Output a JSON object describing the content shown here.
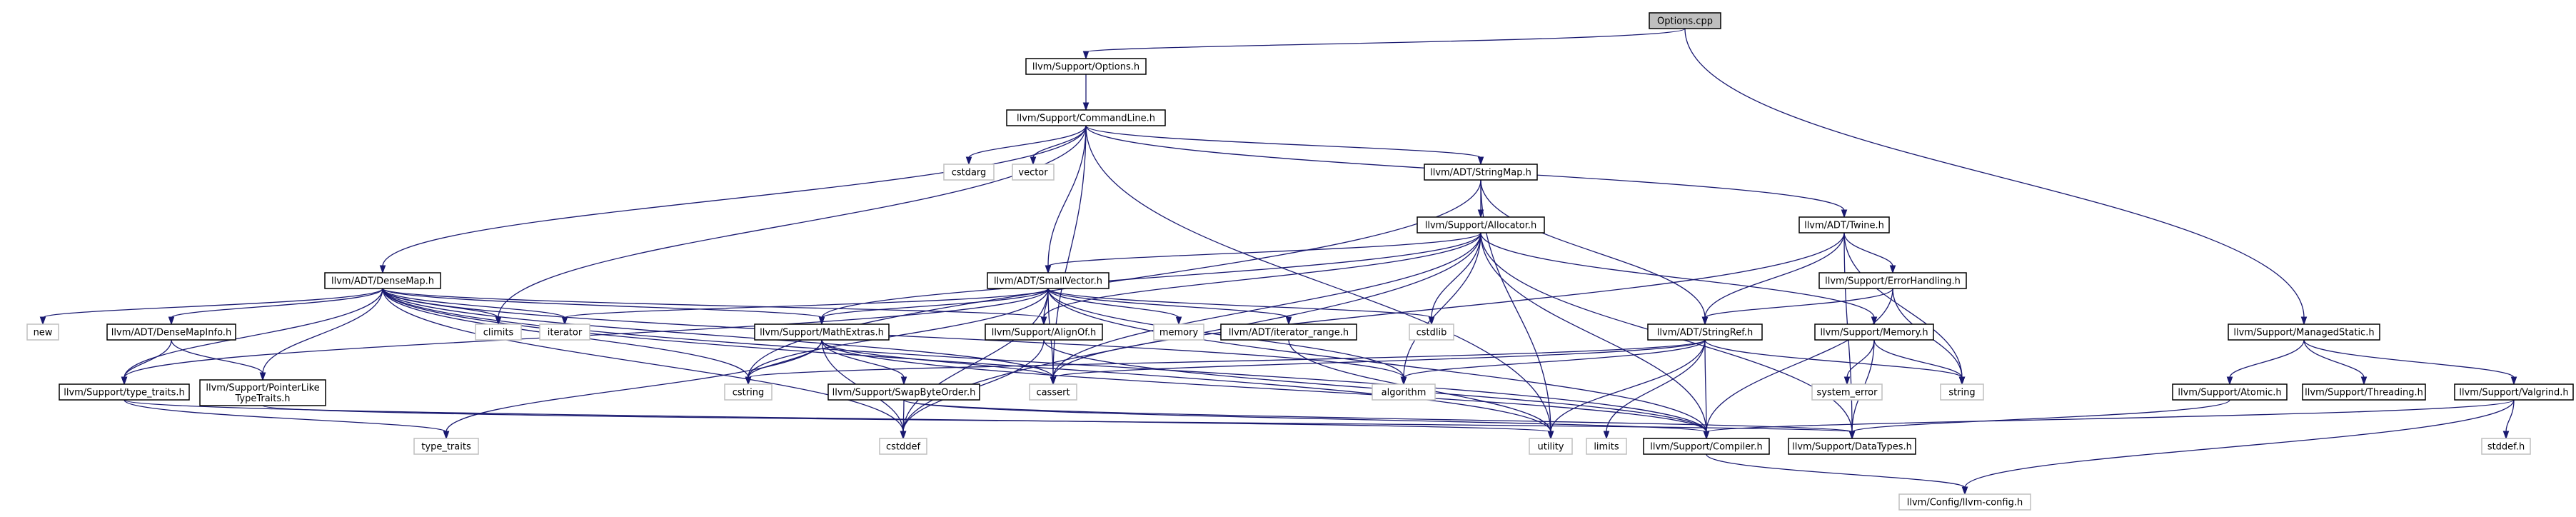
{
  "graph": {
    "colors": {
      "edge": "#191970",
      "root_fill": "#bfbfbf",
      "node_border": "#000000",
      "system_border": "#bfbfbf"
    },
    "nodes": [
      {
        "id": "options_cpp",
        "label": "Options.cpp",
        "kind": "root"
      },
      {
        "id": "options_h",
        "label": "llvm/Support/Options.h",
        "kind": "boxed"
      },
      {
        "id": "commandline_h",
        "label": "llvm/Support/CommandLine.h",
        "kind": "boxed"
      },
      {
        "id": "managedstatic_h",
        "label": "llvm/Support/ManagedStatic.h",
        "kind": "boxed"
      },
      {
        "id": "densemap_h",
        "label": "llvm/ADT/DenseMap.h",
        "kind": "boxed"
      },
      {
        "id": "stringmap_h",
        "label": "llvm/ADT/StringMap.h",
        "kind": "boxed"
      },
      {
        "id": "twine_h",
        "label": "llvm/ADT/Twine.h",
        "kind": "boxed"
      },
      {
        "id": "allocator_h",
        "label": "llvm/Support/Allocator.h",
        "kind": "boxed"
      },
      {
        "id": "smallvector_h",
        "label": "llvm/ADT/SmallVector.h",
        "kind": "boxed"
      },
      {
        "id": "errorhandling_h",
        "label": "llvm/Support/ErrorHandling.h",
        "kind": "boxed"
      },
      {
        "id": "densemapinfo_h",
        "label": "llvm/ADT/DenseMapInfo.h",
        "kind": "boxed"
      },
      {
        "id": "mathextras_h",
        "label": "llvm/Support/MathExtras.h",
        "kind": "boxed"
      },
      {
        "id": "alignof_h",
        "label": "llvm/Support/AlignOf.h",
        "kind": "boxed"
      },
      {
        "id": "iterator_range_h",
        "label": "llvm/ADT/iterator_range.h",
        "kind": "boxed"
      },
      {
        "id": "stringref_h",
        "label": "llvm/ADT/StringRef.h",
        "kind": "boxed"
      },
      {
        "id": "memory_h",
        "label": "llvm/Support/Memory.h",
        "kind": "boxed"
      },
      {
        "id": "atomic_h",
        "label": "llvm/Support/Atomic.h",
        "kind": "boxed"
      },
      {
        "id": "threading_h",
        "label": "llvm/Support/Threading.h",
        "kind": "boxed"
      },
      {
        "id": "valgrind_h",
        "label": "llvm/Support/Valgrind.h",
        "kind": "boxed"
      },
      {
        "id": "type_traits_h",
        "label": "llvm/Support/type_traits.h",
        "kind": "boxed"
      },
      {
        "id": "pointerliketypetraits_h",
        "label": "llvm/Support/PointerLike\nTypeTraits.h",
        "kind": "boxed"
      },
      {
        "id": "swapbyteorder_h",
        "label": "llvm/Support/SwapByteOrder.h",
        "kind": "boxed"
      },
      {
        "id": "compiler_h",
        "label": "llvm/Support/Compiler.h",
        "kind": "boxed"
      },
      {
        "id": "datatypes_h",
        "label": "llvm/Support/DataTypes.h",
        "kind": "boxed"
      },
      {
        "id": "llvm_config_h",
        "label": "llvm/Config/llvm-config.h",
        "kind": "system"
      },
      {
        "id": "cstdarg",
        "label": "cstdarg",
        "kind": "system"
      },
      {
        "id": "vector",
        "label": "vector",
        "kind": "system"
      },
      {
        "id": "new",
        "label": "new",
        "kind": "system"
      },
      {
        "id": "climits",
        "label": "climits",
        "kind": "system"
      },
      {
        "id": "iterator",
        "label": "iterator",
        "kind": "system"
      },
      {
        "id": "memory",
        "label": "memory",
        "kind": "system"
      },
      {
        "id": "cstdlib",
        "label": "cstdlib",
        "kind": "system"
      },
      {
        "id": "cstring",
        "label": "cstring",
        "kind": "system"
      },
      {
        "id": "cassert",
        "label": "cassert",
        "kind": "system"
      },
      {
        "id": "algorithm",
        "label": "algorithm",
        "kind": "system"
      },
      {
        "id": "system_error",
        "label": "system_error",
        "kind": "system"
      },
      {
        "id": "string",
        "label": "string",
        "kind": "system"
      },
      {
        "id": "type_traits",
        "label": "type_traits",
        "kind": "system"
      },
      {
        "id": "cstddef",
        "label": "cstddef",
        "kind": "system"
      },
      {
        "id": "utility",
        "label": "utility",
        "kind": "system"
      },
      {
        "id": "limits",
        "label": "limits",
        "kind": "system"
      },
      {
        "id": "stddef_h",
        "label": "stddef.h",
        "kind": "system"
      }
    ],
    "edges": [
      [
        "options_cpp",
        "options_h"
      ],
      [
        "options_cpp",
        "managedstatic_h"
      ],
      [
        "options_h",
        "commandline_h"
      ],
      [
        "commandline_h",
        "densemap_h"
      ],
      [
        "commandline_h",
        "stringmap_h"
      ],
      [
        "commandline_h",
        "twine_h"
      ],
      [
        "commandline_h",
        "smallvector_h"
      ],
      [
        "commandline_h",
        "cstdarg"
      ],
      [
        "commandline_h",
        "vector"
      ],
      [
        "commandline_h",
        "climits"
      ],
      [
        "commandline_h",
        "cassert"
      ],
      [
        "commandline_h",
        "utility"
      ],
      [
        "densemap_h",
        "densemapinfo_h"
      ],
      [
        "densemap_h",
        "type_traits_h"
      ],
      [
        "densemap_h",
        "pointerliketypetraits_h"
      ],
      [
        "densemap_h",
        "mathextras_h"
      ],
      [
        "densemap_h",
        "alignof_h"
      ],
      [
        "densemap_h",
        "new"
      ],
      [
        "densemap_h",
        "climits"
      ],
      [
        "densemap_h",
        "iterator"
      ],
      [
        "densemap_h",
        "cstring"
      ],
      [
        "densemap_h",
        "cassert"
      ],
      [
        "densemap_h",
        "algorithm"
      ],
      [
        "densemap_h",
        "cstddef"
      ],
      [
        "densemap_h",
        "utility"
      ],
      [
        "densemap_h",
        "compiler_h"
      ],
      [
        "stringmap_h",
        "allocator_h"
      ],
      [
        "stringmap_h",
        "stringref_h"
      ],
      [
        "stringmap_h",
        "cstring"
      ],
      [
        "stringmap_h",
        "utility"
      ],
      [
        "twine_h",
        "errorhandling_h"
      ],
      [
        "twine_h",
        "stringref_h"
      ],
      [
        "twine_h",
        "cassert"
      ],
      [
        "twine_h",
        "string"
      ],
      [
        "twine_h",
        "datatypes_h"
      ],
      [
        "allocator_h",
        "smallvector_h"
      ],
      [
        "allocator_h",
        "alignof_h"
      ],
      [
        "allocator_h",
        "mathextras_h"
      ],
      [
        "allocator_h",
        "memory_h"
      ],
      [
        "allocator_h",
        "cstdlib"
      ],
      [
        "allocator_h",
        "cassert"
      ],
      [
        "allocator_h",
        "algorithm"
      ],
      [
        "allocator_h",
        "cstddef"
      ],
      [
        "allocator_h",
        "datatypes_h"
      ],
      [
        "allocator_h",
        "compiler_h"
      ],
      [
        "smallvector_h",
        "alignof_h"
      ],
      [
        "smallvector_h",
        "iterator_range_h"
      ],
      [
        "smallvector_h",
        "mathextras_h"
      ],
      [
        "smallvector_h",
        "type_traits_h"
      ],
      [
        "smallvector_h",
        "memory"
      ],
      [
        "smallvector_h",
        "cstdlib"
      ],
      [
        "smallvector_h",
        "iterator"
      ],
      [
        "smallvector_h",
        "cstring"
      ],
      [
        "smallvector_h",
        "cassert"
      ],
      [
        "smallvector_h",
        "algorithm"
      ],
      [
        "smallvector_h",
        "cstddef"
      ],
      [
        "smallvector_h",
        "compiler_h"
      ],
      [
        "errorhandling_h",
        "stringref_h"
      ],
      [
        "errorhandling_h",
        "compiler_h"
      ],
      [
        "errorhandling_h",
        "string"
      ],
      [
        "densemapinfo_h",
        "type_traits_h"
      ],
      [
        "densemapinfo_h",
        "pointerliketypetraits_h"
      ],
      [
        "mathextras_h",
        "swapbyteorder_h"
      ],
      [
        "mathextras_h",
        "compiler_h"
      ],
      [
        "mathextras_h",
        "cassert"
      ],
      [
        "mathextras_h",
        "cstring"
      ],
      [
        "mathextras_h",
        "type_traits"
      ],
      [
        "mathextras_h",
        "cstddef"
      ],
      [
        "alignof_h",
        "compiler_h"
      ],
      [
        "alignof_h",
        "cstddef"
      ],
      [
        "iterator_range_h",
        "utility"
      ],
      [
        "stringref_h",
        "compiler_h"
      ],
      [
        "stringref_h",
        "algorithm"
      ],
      [
        "stringref_h",
        "cassert"
      ],
      [
        "stringref_h",
        "cstring"
      ],
      [
        "stringref_h",
        "limits"
      ],
      [
        "stringref_h",
        "string"
      ],
      [
        "stringref_h",
        "utility"
      ],
      [
        "memory_h",
        "datatypes_h"
      ],
      [
        "memory_h",
        "string"
      ],
      [
        "memory_h",
        "system_error"
      ],
      [
        "managedstatic_h",
        "atomic_h"
      ],
      [
        "managedstatic_h",
        "threading_h"
      ],
      [
        "managedstatic_h",
        "valgrind_h"
      ],
      [
        "atomic_h",
        "datatypes_h"
      ],
      [
        "valgrind_h",
        "compiler_h"
      ],
      [
        "valgrind_h",
        "llvm_config_h"
      ],
      [
        "valgrind_h",
        "stddef_h"
      ],
      [
        "type_traits_h",
        "type_traits"
      ],
      [
        "type_traits_h",
        "utility"
      ],
      [
        "pointerliketypetraits_h",
        "datatypes_h"
      ],
      [
        "swapbyteorder_h",
        "compiler_h"
      ],
      [
        "swapbyteorder_h",
        "datatypes_h"
      ],
      [
        "swapbyteorder_h",
        "cstddef"
      ],
      [
        "compiler_h",
        "llvm_config_h"
      ]
    ]
  }
}
